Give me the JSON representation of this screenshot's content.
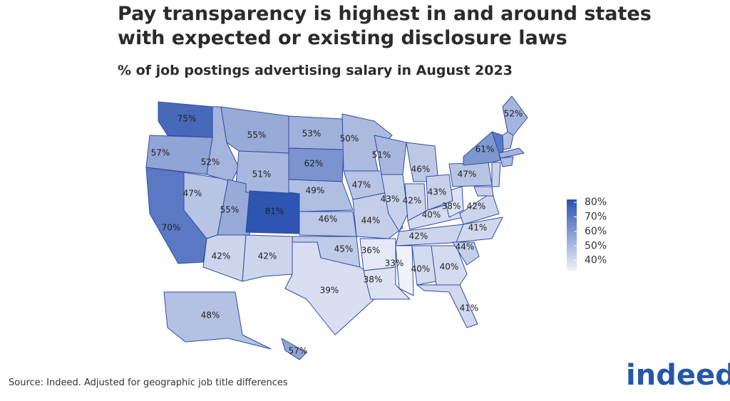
{
  "chart_data": {
    "type": "choropleth",
    "title": [
      "Pay transparency is highest in and around states",
      "with expected or existing disclosure laws"
    ],
    "subtitle": "% of job postings advertising salary in August 2023",
    "source": "Source: Indeed. Adjusted for geographic job title differences",
    "logo": "indeed",
    "values": [
      75,
      57,
      70,
      47,
      52,
      55,
      51,
      55,
      81,
      42,
      42,
      53,
      62,
      49,
      46,
      45,
      39,
      50,
      47,
      44,
      36,
      38,
      51,
      43,
      33,
      46,
      42,
      40,
      42,
      40,
      40,
      41,
      44,
      41,
      42,
      38,
      43,
      47,
      61,
      52,
      48,
      57
    ],
    "value_labels": [
      "75%",
      "57%",
      "70%",
      "47%",
      "52%",
      "55%",
      "51%",
      "55%",
      "81%",
      "42%",
      "42%",
      "53%",
      "62%",
      "49%",
      "46%",
      "45%",
      "39%",
      "50%",
      "47%",
      "44%",
      "36%",
      "38%",
      "51%",
      "43%",
      "33%",
      "46%",
      "42%",
      "40%",
      "42%",
      "40%",
      "40%",
      "41%",
      "44%",
      "41%",
      "42%",
      "38%",
      "43%",
      "47%",
      "61%",
      "52%",
      "48%",
      "57%"
    ],
    "colors": [
      "#f1f2f9",
      "#2a52b0"
    ],
    "colorlim": [
      33,
      82
    ],
    "colorticks": [
      {
        "value": 40,
        "label": "40%"
      },
      {
        "value": 50,
        "label": "50%"
      },
      {
        "value": 60,
        "label": "60%"
      },
      {
        "value": 70,
        "label": "70%"
      },
      {
        "value": 80,
        "label": "80%"
      }
    ]
  }
}
